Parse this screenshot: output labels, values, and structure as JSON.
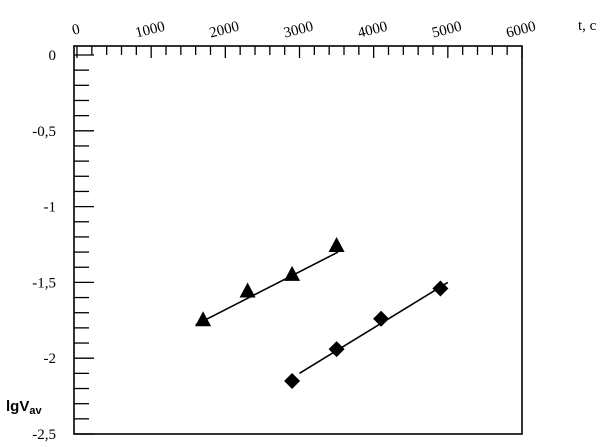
{
  "chart_data": {
    "type": "scatter",
    "xlabel": "t, c",
    "ylabel": {
      "main": "lgV",
      "sub": "av"
    },
    "xlim": [
      0,
      6000
    ],
    "ylim": [
      -2.5,
      0
    ],
    "x_axis_position": "top",
    "grid": false,
    "x_ticks": [
      {
        "value": 0,
        "label": "0"
      },
      {
        "value": 1000,
        "label": "1000"
      },
      {
        "value": 2000,
        "label": "2000"
      },
      {
        "value": 3000,
        "label": "3000"
      },
      {
        "value": 4000,
        "label": "4000"
      },
      {
        "value": 5000,
        "label": "5000"
      },
      {
        "value": 6000,
        "label": "6000"
      }
    ],
    "y_ticks": [
      {
        "value": 0,
        "label": "0"
      },
      {
        "value": -0.5,
        "label": "-0,5"
      },
      {
        "value": -1,
        "label": "-1"
      },
      {
        "value": -1.5,
        "label": "-1,5"
      },
      {
        "value": -2,
        "label": "-2"
      },
      {
        "value": -2.5,
        "label": "-2,5"
      }
    ],
    "x_minor_step": 200,
    "y_minor_step": 0.1,
    "series": [
      {
        "marker": "triangle",
        "x": [
          1700,
          2300,
          2900,
          3500
        ],
        "y": [
          -1.75,
          -1.56,
          -1.45,
          -1.26
        ],
        "fit": {
          "x": [
            1600,
            3520
          ],
          "y": [
            -1.78,
            -1.3
          ]
        }
      },
      {
        "marker": "diamond",
        "x": [
          2900,
          3500,
          4100,
          4900
        ],
        "y": [
          -2.15,
          -1.94,
          -1.74,
          -1.54
        ],
        "fit": {
          "x": [
            3000,
            5000
          ],
          "y": [
            -2.1,
            -1.5
          ]
        }
      }
    ]
  }
}
